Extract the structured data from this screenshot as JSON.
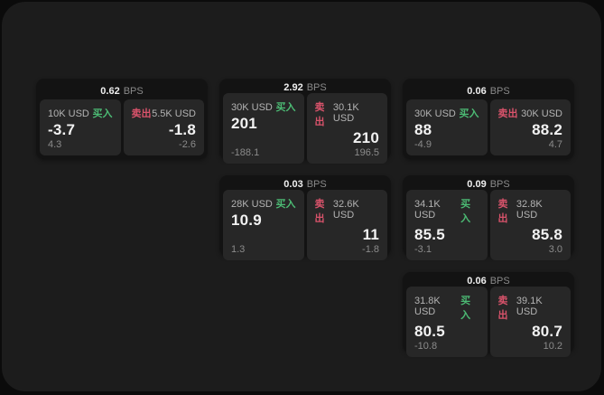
{
  "labels": {
    "buy": "买入",
    "sell": "卖出",
    "bps": "BPS"
  },
  "colors": {
    "buy": "#4cbb74",
    "sell": "#d9536b",
    "page_bg": "#1c1c1c",
    "card_bg": "#131313",
    "panel_bg": "#272727"
  },
  "cards": [
    {
      "col": 1,
      "row": 1,
      "bps": "0.62",
      "buy": {
        "amount": "10K USD",
        "price": "-3.7",
        "delta": "4.3"
      },
      "sell": {
        "amount": "5.5K USD",
        "price": "-1.8",
        "delta": "-2.6"
      }
    },
    {
      "col": 2,
      "row": 1,
      "bps": "2.92",
      "buy": {
        "amount": "30K USD",
        "price": "201",
        "delta": "-188.1"
      },
      "sell": {
        "amount": "30.1K USD",
        "price": "210",
        "delta": "196.5"
      }
    },
    {
      "col": 3,
      "row": 1,
      "bps": "0.06",
      "buy": {
        "amount": "30K USD",
        "price": "88",
        "delta": "-4.9"
      },
      "sell": {
        "amount": "30K USD",
        "price": "88.2",
        "delta": "4.7"
      }
    },
    {
      "col": 2,
      "row": 2,
      "bps": "0.03",
      "buy": {
        "amount": "28K USD",
        "price": "10.9",
        "delta": "1.3"
      },
      "sell": {
        "amount": "32.6K USD",
        "price": "11",
        "delta": "-1.8"
      }
    },
    {
      "col": 3,
      "row": 2,
      "bps": "0.09",
      "buy": {
        "amount": "34.1K USD",
        "price": "85.5",
        "delta": "-3.1"
      },
      "sell": {
        "amount": "32.8K USD",
        "price": "85.8",
        "delta": "3.0"
      }
    },
    {
      "col": 3,
      "row": 3,
      "bps": "0.06",
      "buy": {
        "amount": "31.8K USD",
        "price": "80.5",
        "delta": "-10.8"
      },
      "sell": {
        "amount": "39.1K USD",
        "price": "80.7",
        "delta": "10.2"
      }
    }
  ]
}
